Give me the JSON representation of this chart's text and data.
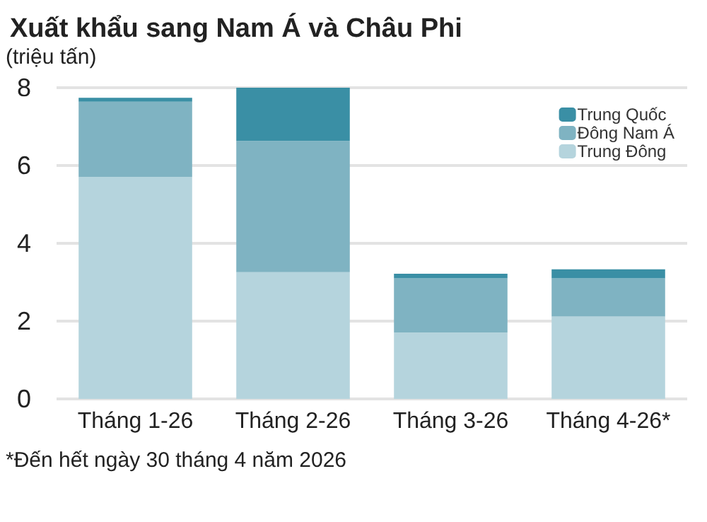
{
  "chart_data": {
    "type": "bar",
    "title": "Xuất khẩu sang Nam Á và Châu Phi",
    "ylabel": "(triệu tấn)",
    "categories": [
      "Tháng 1-26",
      "Tháng 2-26",
      "Tháng 3-26",
      "Tháng 4-26*"
    ],
    "stacked": true,
    "series": [
      {
        "name": "Trung Đông",
        "color": "#b5d4dd",
        "values": [
          5.71,
          3.26,
          1.71,
          2.12
        ]
      },
      {
        "name": "Đông Nam Á",
        "color": "#7fb3c2",
        "values": [
          1.93,
          3.37,
          1.39,
          0.98
        ]
      },
      {
        "name": "Trung Quốc",
        "color": "#3a8fa5",
        "values": [
          0.1,
          1.37,
          0.12,
          0.23
        ]
      }
    ],
    "ylim": [
      0,
      8
    ],
    "yticks": [
      0,
      2,
      4,
      6,
      8
    ],
    "grid": "y",
    "legend": "top right",
    "annotations": [
      "*Đến hết ngày 30 tháng 4 năm 2026"
    ]
  }
}
